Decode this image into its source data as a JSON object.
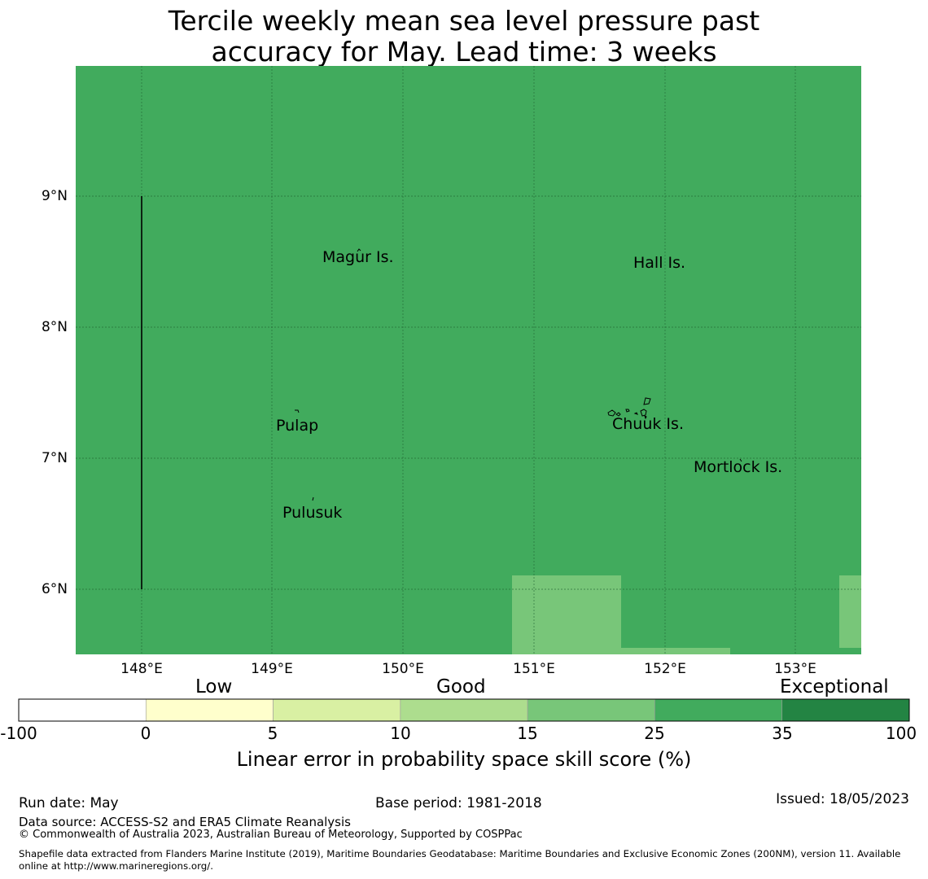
{
  "title": {
    "line1": "Tercile weekly mean sea level pressure past",
    "line2": "accuracy for May. Lead time: 3 weeks"
  },
  "map": {
    "background_color": "#41ab5d",
    "lat_labels": [
      "9°N",
      "8°N",
      "7°N",
      "6°N"
    ],
    "lon_labels": [
      "148°E",
      "149°E",
      "150°E",
      "151°E",
      "152°E",
      "153°E"
    ],
    "places": [
      "Magur Is.",
      "Hall Is.",
      "Pulap",
      "Chuuk Is.",
      "Mortlock Is.",
      "Pulusuk"
    ]
  },
  "colorbar": {
    "category_labels": [
      "Low",
      "Good",
      "Exceptional"
    ],
    "tick_labels": [
      "-100",
      "0",
      "5",
      "10",
      "15",
      "25",
      "35",
      "100"
    ],
    "colors": [
      "#ffffff",
      "#ffffcc",
      "#d9f0a3",
      "#addd8e",
      "#78c679",
      "#41ab5d",
      "#238443"
    ],
    "title": "Linear error in probability space skill score (%)"
  },
  "footer": {
    "run_date": "Run date: May",
    "base_period": "Base period: 1981-2018",
    "issued": "Issued: 18/05/2023",
    "data_source": "Data source: ACCESS-S2 and ERA5 Climate Reanalysis",
    "copyright": "© Commonwealth of Australia 2023, Australian Bureau of Meteorology, Supported by COSPPac",
    "shapefile_line1": "Shapefile data extracted from Flanders Marine Institute (2019), Maritime Boundaries Geodatabase: Maritime Boundaries and Exclusive Economic Zones (200NM), version 11. Available",
    "shapefile_line2": "online at http://www.marineregions.org/."
  }
}
